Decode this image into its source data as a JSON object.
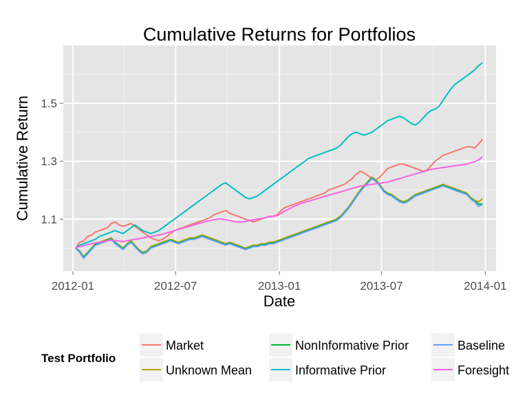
{
  "chart_data": {
    "type": "line",
    "title": "Cumulative Returns for Portfolios",
    "xlabel": "Date",
    "ylabel": "Cumulative Return",
    "xlim": [
      "2012-01-01",
      "2014-01-01"
    ],
    "ylim": [
      0.92,
      1.7
    ],
    "x_ticks": [
      "2012-01",
      "2012-07",
      "2013-01",
      "2013-07",
      "2014-01"
    ],
    "y_ticks": [
      1.1,
      1.3,
      1.5
    ],
    "y_tick_labels": [
      "1.1",
      "1.3",
      "1.5"
    ],
    "grid": true,
    "legend": {
      "title": "Test Portfolio",
      "position": "bottom"
    },
    "x": [
      "2012-01-06",
      "2012-01-13",
      "2012-01-20",
      "2012-01-27",
      "2012-02-03",
      "2012-02-10",
      "2012-02-17",
      "2012-02-24",
      "2012-03-02",
      "2012-03-09",
      "2012-03-16",
      "2012-03-23",
      "2012-03-30",
      "2012-04-06",
      "2012-04-13",
      "2012-04-20",
      "2012-04-27",
      "2012-05-04",
      "2012-05-11",
      "2012-05-18",
      "2012-05-25",
      "2012-06-01",
      "2012-06-08",
      "2012-06-15",
      "2012-06-22",
      "2012-06-29",
      "2012-07-06",
      "2012-07-13",
      "2012-07-20",
      "2012-07-27",
      "2012-08-03",
      "2012-08-10",
      "2012-08-17",
      "2012-08-24",
      "2012-08-31",
      "2012-09-07",
      "2012-09-14",
      "2012-09-21",
      "2012-09-28",
      "2012-10-05",
      "2012-10-12",
      "2012-10-19",
      "2012-10-26",
      "2012-11-02",
      "2012-11-09",
      "2012-11-16",
      "2012-11-23",
      "2012-11-30",
      "2012-12-07",
      "2012-12-14",
      "2012-12-21",
      "2012-12-28",
      "2013-01-04",
      "2013-01-11",
      "2013-01-18",
      "2013-01-25",
      "2013-02-01",
      "2013-02-08",
      "2013-02-15",
      "2013-02-22",
      "2013-03-01",
      "2013-03-08",
      "2013-03-15",
      "2013-03-22",
      "2013-03-29",
      "2013-04-05",
      "2013-04-12",
      "2013-04-19",
      "2013-04-26",
      "2013-05-03",
      "2013-05-10",
      "2013-05-17",
      "2013-05-24",
      "2013-05-31",
      "2013-06-07",
      "2013-06-14",
      "2013-06-21",
      "2013-06-28",
      "2013-07-05",
      "2013-07-12",
      "2013-07-19",
      "2013-07-26",
      "2013-08-02",
      "2013-08-09",
      "2013-08-16",
      "2013-08-23",
      "2013-08-30",
      "2013-09-06",
      "2013-09-13",
      "2013-09-20",
      "2013-09-27",
      "2013-10-04",
      "2013-10-11",
      "2013-10-18",
      "2013-10-25",
      "2013-11-01",
      "2013-11-08",
      "2013-11-15",
      "2013-11-22",
      "2013-11-29",
      "2013-12-06",
      "2013-12-13",
      "2013-12-20",
      "2013-12-27"
    ],
    "series": [
      {
        "name": "Market",
        "color": "#F8766D",
        "values": [
          1.0,
          1.02,
          1.025,
          1.04,
          1.045,
          1.055,
          1.06,
          1.065,
          1.07,
          1.085,
          1.09,
          1.08,
          1.075,
          1.08,
          1.085,
          1.075,
          1.065,
          1.055,
          1.045,
          1.035,
          1.03,
          1.025,
          1.03,
          1.04,
          1.05,
          1.06,
          1.065,
          1.07,
          1.075,
          1.08,
          1.085,
          1.09,
          1.095,
          1.1,
          1.105,
          1.115,
          1.12,
          1.125,
          1.13,
          1.12,
          1.115,
          1.11,
          1.105,
          1.1,
          1.095,
          1.09,
          1.095,
          1.1,
          1.105,
          1.11,
          1.11,
          1.115,
          1.13,
          1.14,
          1.145,
          1.15,
          1.155,
          1.16,
          1.165,
          1.17,
          1.175,
          1.18,
          1.185,
          1.19,
          1.2,
          1.205,
          1.21,
          1.215,
          1.22,
          1.23,
          1.24,
          1.255,
          1.265,
          1.26,
          1.25,
          1.24,
          1.235,
          1.245,
          1.26,
          1.275,
          1.28,
          1.285,
          1.29,
          1.29,
          1.285,
          1.28,
          1.275,
          1.27,
          1.265,
          1.27,
          1.285,
          1.3,
          1.31,
          1.32,
          1.325,
          1.33,
          1.335,
          1.34,
          1.345,
          1.35,
          1.35,
          1.345,
          1.36,
          1.375
        ]
      },
      {
        "name": "Unknown Mean",
        "color": "#B79F00",
        "values": [
          1.0,
          0.99,
          0.97,
          0.985,
          1.0,
          1.015,
          1.02,
          1.025,
          1.03,
          1.035,
          1.02,
          1.01,
          1.0,
          1.015,
          1.025,
          1.01,
          0.995,
          0.985,
          0.99,
          1.005,
          1.01,
          1.015,
          1.02,
          1.025,
          1.03,
          1.025,
          1.02,
          1.025,
          1.03,
          1.035,
          1.035,
          1.04,
          1.045,
          1.04,
          1.035,
          1.03,
          1.025,
          1.02,
          1.015,
          1.02,
          1.015,
          1.01,
          1.005,
          1.0,
          1.005,
          1.01,
          1.01,
          1.015,
          1.015,
          1.02,
          1.02,
          1.025,
          1.03,
          1.035,
          1.04,
          1.045,
          1.05,
          1.055,
          1.06,
          1.065,
          1.07,
          1.075,
          1.08,
          1.085,
          1.09,
          1.095,
          1.1,
          1.11,
          1.125,
          1.14,
          1.16,
          1.18,
          1.2,
          1.215,
          1.23,
          1.245,
          1.235,
          1.22,
          1.2,
          1.19,
          1.185,
          1.175,
          1.165,
          1.16,
          1.165,
          1.175,
          1.185,
          1.19,
          1.195,
          1.2,
          1.205,
          1.21,
          1.215,
          1.22,
          1.215,
          1.21,
          1.205,
          1.2,
          1.195,
          1.19,
          1.175,
          1.165,
          1.16,
          1.17
        ]
      },
      {
        "name": "NonInformative Prior",
        "color": "#00BA38",
        "values": [
          1.0,
          0.988,
          0.968,
          0.983,
          0.998,
          1.012,
          1.018,
          1.022,
          1.028,
          1.032,
          1.018,
          1.008,
          0.998,
          1.012,
          1.022,
          1.007,
          0.992,
          0.982,
          0.987,
          1.002,
          1.007,
          1.012,
          1.017,
          1.022,
          1.027,
          1.022,
          1.017,
          1.022,
          1.027,
          1.032,
          1.032,
          1.037,
          1.042,
          1.037,
          1.032,
          1.027,
          1.022,
          1.017,
          1.012,
          1.017,
          1.012,
          1.007,
          1.002,
          0.997,
          1.002,
          1.007,
          1.007,
          1.012,
          1.012,
          1.017,
          1.017,
          1.022,
          1.027,
          1.032,
          1.037,
          1.042,
          1.047,
          1.052,
          1.057,
          1.062,
          1.067,
          1.072,
          1.077,
          1.082,
          1.087,
          1.092,
          1.097,
          1.107,
          1.122,
          1.137,
          1.157,
          1.177,
          1.197,
          1.212,
          1.227,
          1.242,
          1.232,
          1.217,
          1.197,
          1.187,
          1.182,
          1.172,
          1.162,
          1.157,
          1.162,
          1.172,
          1.182,
          1.187,
          1.192,
          1.197,
          1.202,
          1.207,
          1.212,
          1.217,
          1.212,
          1.207,
          1.202,
          1.197,
          1.192,
          1.187,
          1.172,
          1.162,
          1.152,
          1.152
        ]
      },
      {
        "name": "Baseline",
        "color": "#619CFF",
        "values": [
          1.0,
          0.985,
          0.965,
          0.98,
          0.995,
          1.01,
          1.015,
          1.02,
          1.025,
          1.03,
          1.015,
          1.005,
          0.995,
          1.01,
          1.02,
          1.005,
          0.99,
          0.98,
          0.985,
          1.0,
          1.005,
          1.01,
          1.015,
          1.02,
          1.025,
          1.02,
          1.015,
          1.02,
          1.025,
          1.03,
          1.03,
          1.035,
          1.04,
          1.035,
          1.03,
          1.025,
          1.02,
          1.015,
          1.01,
          1.015,
          1.01,
          1.005,
          1.0,
          0.995,
          1.0,
          1.005,
          1.005,
          1.01,
          1.01,
          1.015,
          1.015,
          1.02,
          1.025,
          1.03,
          1.035,
          1.04,
          1.045,
          1.05,
          1.055,
          1.06,
          1.065,
          1.07,
          1.075,
          1.08,
          1.085,
          1.09,
          1.095,
          1.105,
          1.12,
          1.135,
          1.155,
          1.175,
          1.195,
          1.21,
          1.225,
          1.24,
          1.23,
          1.215,
          1.195,
          1.185,
          1.18,
          1.17,
          1.16,
          1.155,
          1.16,
          1.17,
          1.18,
          1.185,
          1.19,
          1.195,
          1.2,
          1.205,
          1.21,
          1.215,
          1.21,
          1.205,
          1.2,
          1.195,
          1.19,
          1.185,
          1.17,
          1.16,
          1.145,
          1.15
        ]
      },
      {
        "name": "Informative Prior",
        "color": "#00BFC4",
        "values": [
          1.0,
          1.01,
          1.015,
          1.02,
          1.025,
          1.03,
          1.04,
          1.045,
          1.05,
          1.055,
          1.06,
          1.055,
          1.05,
          1.06,
          1.07,
          1.08,
          1.07,
          1.06,
          1.055,
          1.05,
          1.055,
          1.06,
          1.07,
          1.08,
          1.09,
          1.1,
          1.11,
          1.12,
          1.13,
          1.14,
          1.15,
          1.16,
          1.17,
          1.18,
          1.19,
          1.2,
          1.21,
          1.22,
          1.225,
          1.215,
          1.205,
          1.195,
          1.185,
          1.175,
          1.17,
          1.175,
          1.18,
          1.19,
          1.2,
          1.21,
          1.22,
          1.23,
          1.24,
          1.25,
          1.26,
          1.27,
          1.28,
          1.29,
          1.3,
          1.31,
          1.315,
          1.32,
          1.325,
          1.33,
          1.335,
          1.34,
          1.345,
          1.355,
          1.37,
          1.385,
          1.395,
          1.4,
          1.395,
          1.39,
          1.395,
          1.4,
          1.41,
          1.42,
          1.43,
          1.44,
          1.445,
          1.45,
          1.455,
          1.45,
          1.44,
          1.43,
          1.425,
          1.435,
          1.45,
          1.465,
          1.475,
          1.48,
          1.49,
          1.51,
          1.53,
          1.55,
          1.565,
          1.575,
          1.585,
          1.595,
          1.605,
          1.615,
          1.63,
          1.64
        ]
      },
      {
        "name": "Foresight",
        "color": "#F564E3",
        "values": [
          1.0,
          1.005,
          1.008,
          1.012,
          1.015,
          1.018,
          1.02,
          1.022,
          1.025,
          1.027,
          1.026,
          1.024,
          1.022,
          1.025,
          1.028,
          1.03,
          1.032,
          1.035,
          1.038,
          1.04,
          1.042,
          1.045,
          1.048,
          1.052,
          1.056,
          1.06,
          1.064,
          1.068,
          1.072,
          1.076,
          1.08,
          1.084,
          1.088,
          1.092,
          1.095,
          1.098,
          1.1,
          1.1,
          1.098,
          1.095,
          1.092,
          1.09,
          1.09,
          1.092,
          1.095,
          1.098,
          1.1,
          1.102,
          1.105,
          1.108,
          1.11,
          1.112,
          1.12,
          1.128,
          1.135,
          1.142,
          1.148,
          1.154,
          1.158,
          1.162,
          1.166,
          1.17,
          1.174,
          1.178,
          1.182,
          1.186,
          1.19,
          1.194,
          1.198,
          1.202,
          1.206,
          1.21,
          1.214,
          1.216,
          1.218,
          1.22,
          1.222,
          1.224,
          1.226,
          1.228,
          1.232,
          1.236,
          1.24,
          1.244,
          1.248,
          1.252,
          1.256,
          1.26,
          1.264,
          1.268,
          1.272,
          1.274,
          1.276,
          1.278,
          1.28,
          1.282,
          1.284,
          1.286,
          1.288,
          1.29,
          1.294,
          1.298,
          1.305,
          1.315
        ]
      }
    ]
  }
}
